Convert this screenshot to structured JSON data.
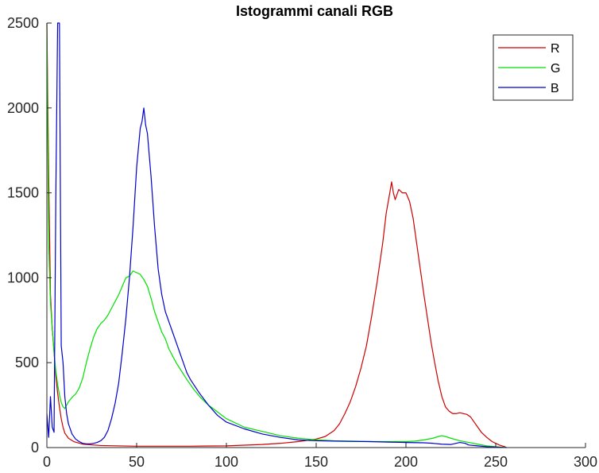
{
  "chart_data": {
    "type": "line",
    "title": "Istogrammi canali RGB",
    "xlabel": "",
    "ylabel": "",
    "xlim": [
      0,
      300
    ],
    "ylim": [
      0,
      2500
    ],
    "xticks": [
      0,
      50,
      100,
      150,
      200,
      250,
      300
    ],
    "yticks": [
      0,
      500,
      1000,
      1500,
      2000,
      2500
    ],
    "grid": false,
    "legend_position": "top-right",
    "series": [
      {
        "name": "R",
        "color": "#cc0000",
        "points": [
          [
            0,
            2500
          ],
          [
            1,
            1600
          ],
          [
            2,
            900
          ],
          [
            3,
            700
          ],
          [
            4,
            560
          ],
          [
            5,
            420
          ],
          [
            6,
            320
          ],
          [
            7,
            240
          ],
          [
            8,
            170
          ],
          [
            9,
            120
          ],
          [
            10,
            85
          ],
          [
            12,
            55
          ],
          [
            15,
            35
          ],
          [
            20,
            20
          ],
          [
            30,
            12
          ],
          [
            50,
            8
          ],
          [
            80,
            8
          ],
          [
            100,
            10
          ],
          [
            120,
            18
          ],
          [
            130,
            25
          ],
          [
            140,
            35
          ],
          [
            150,
            50
          ],
          [
            155,
            65
          ],
          [
            160,
            100
          ],
          [
            163,
            140
          ],
          [
            166,
            200
          ],
          [
            169,
            270
          ],
          [
            172,
            360
          ],
          [
            175,
            470
          ],
          [
            178,
            600
          ],
          [
            181,
            780
          ],
          [
            184,
            980
          ],
          [
            187,
            1200
          ],
          [
            189,
            1380
          ],
          [
            191,
            1500
          ],
          [
            192,
            1565
          ],
          [
            193,
            1500
          ],
          [
            194,
            1460
          ],
          [
            196,
            1520
          ],
          [
            198,
            1500
          ],
          [
            200,
            1500
          ],
          [
            202,
            1450
          ],
          [
            204,
            1350
          ],
          [
            206,
            1200
          ],
          [
            208,
            1050
          ],
          [
            210,
            900
          ],
          [
            212,
            760
          ],
          [
            214,
            620
          ],
          [
            216,
            500
          ],
          [
            218,
            390
          ],
          [
            220,
            300
          ],
          [
            222,
            240
          ],
          [
            224,
            215
          ],
          [
            226,
            200
          ],
          [
            228,
            200
          ],
          [
            230,
            205
          ],
          [
            232,
            200
          ],
          [
            234,
            195
          ],
          [
            236,
            180
          ],
          [
            238,
            150
          ],
          [
            240,
            120
          ],
          [
            242,
            90
          ],
          [
            245,
            60
          ],
          [
            248,
            35
          ],
          [
            250,
            25
          ],
          [
            252,
            15
          ],
          [
            255,
            5
          ],
          [
            256,
            0
          ]
        ]
      },
      {
        "name": "G",
        "color": "#00e000",
        "points": [
          [
            0,
            2500
          ],
          [
            1,
            1200
          ],
          [
            2,
            850
          ],
          [
            3,
            700
          ],
          [
            4,
            560
          ],
          [
            5,
            450
          ],
          [
            6,
            370
          ],
          [
            7,
            310
          ],
          [
            8,
            265
          ],
          [
            9,
            240
          ],
          [
            10,
            230
          ],
          [
            11,
            250
          ],
          [
            12,
            270
          ],
          [
            14,
            295
          ],
          [
            16,
            315
          ],
          [
            18,
            350
          ],
          [
            20,
            410
          ],
          [
            22,
            500
          ],
          [
            24,
            580
          ],
          [
            26,
            650
          ],
          [
            28,
            700
          ],
          [
            30,
            730
          ],
          [
            32,
            750
          ],
          [
            34,
            780
          ],
          [
            36,
            820
          ],
          [
            38,
            860
          ],
          [
            40,
            900
          ],
          [
            42,
            950
          ],
          [
            44,
            1000
          ],
          [
            46,
            1010
          ],
          [
            48,
            1040
          ],
          [
            50,
            1030
          ],
          [
            52,
            1020
          ],
          [
            54,
            990
          ],
          [
            56,
            950
          ],
          [
            58,
            880
          ],
          [
            60,
            800
          ],
          [
            62,
            740
          ],
          [
            64,
            680
          ],
          [
            66,
            640
          ],
          [
            68,
            580
          ],
          [
            70,
            540
          ],
          [
            72,
            500
          ],
          [
            75,
            450
          ],
          [
            78,
            400
          ],
          [
            82,
            340
          ],
          [
            86,
            290
          ],
          [
            90,
            250
          ],
          [
            95,
            210
          ],
          [
            100,
            170
          ],
          [
            110,
            120
          ],
          [
            120,
            95
          ],
          [
            130,
            70
          ],
          [
            140,
            55
          ],
          [
            150,
            45
          ],
          [
            160,
            40
          ],
          [
            170,
            38
          ],
          [
            180,
            35
          ],
          [
            190,
            35
          ],
          [
            200,
            35
          ],
          [
            205,
            38
          ],
          [
            210,
            45
          ],
          [
            215,
            55
          ],
          [
            218,
            65
          ],
          [
            220,
            70
          ],
          [
            222,
            65
          ],
          [
            225,
            55
          ],
          [
            230,
            40
          ],
          [
            235,
            30
          ],
          [
            240,
            20
          ],
          [
            245,
            10
          ],
          [
            250,
            5
          ],
          [
            256,
            0
          ]
        ]
      },
      {
        "name": "B",
        "color": "#0000cc",
        "points": [
          [
            0,
            200
          ],
          [
            1,
            60
          ],
          [
            2,
            300
          ],
          [
            3,
            120
          ],
          [
            4,
            90
          ],
          [
            5,
            1500
          ],
          [
            6,
            2500
          ],
          [
            7,
            2500
          ],
          [
            8,
            600
          ],
          [
            9,
            500
          ],
          [
            10,
            300
          ],
          [
            11,
            200
          ],
          [
            12,
            140
          ],
          [
            14,
            80
          ],
          [
            16,
            50
          ],
          [
            18,
            35
          ],
          [
            20,
            25
          ],
          [
            22,
            22
          ],
          [
            24,
            22
          ],
          [
            26,
            25
          ],
          [
            28,
            30
          ],
          [
            30,
            40
          ],
          [
            32,
            60
          ],
          [
            34,
            100
          ],
          [
            36,
            170
          ],
          [
            38,
            260
          ],
          [
            40,
            380
          ],
          [
            42,
            560
          ],
          [
            44,
            760
          ],
          [
            46,
            1000
          ],
          [
            48,
            1300
          ],
          [
            50,
            1650
          ],
          [
            52,
            1880
          ],
          [
            53,
            1920
          ],
          [
            54,
            2000
          ],
          [
            55,
            1900
          ],
          [
            56,
            1850
          ],
          [
            58,
            1600
          ],
          [
            60,
            1300
          ],
          [
            62,
            1050
          ],
          [
            64,
            900
          ],
          [
            66,
            800
          ],
          [
            68,
            740
          ],
          [
            70,
            680
          ],
          [
            72,
            620
          ],
          [
            74,
            560
          ],
          [
            76,
            500
          ],
          [
            78,
            440
          ],
          [
            80,
            400
          ],
          [
            85,
            320
          ],
          [
            90,
            250
          ],
          [
            95,
            190
          ],
          [
            100,
            150
          ],
          [
            110,
            110
          ],
          [
            120,
            80
          ],
          [
            130,
            60
          ],
          [
            140,
            45
          ],
          [
            150,
            40
          ],
          [
            160,
            38
          ],
          [
            170,
            36
          ],
          [
            180,
            35
          ],
          [
            190,
            32
          ],
          [
            200,
            30
          ],
          [
            210,
            28
          ],
          [
            215,
            25
          ],
          [
            220,
            20
          ],
          [
            225,
            18
          ],
          [
            230,
            30
          ],
          [
            233,
            25
          ],
          [
            235,
            15
          ],
          [
            240,
            10
          ],
          [
            245,
            5
          ],
          [
            250,
            3
          ],
          [
            256,
            0
          ]
        ]
      }
    ]
  }
}
